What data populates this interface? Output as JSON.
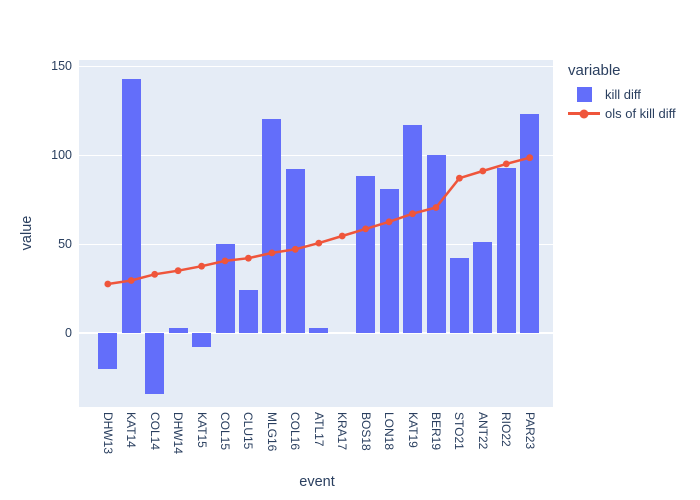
{
  "chart_data": {
    "type": "bar",
    "title": "",
    "categories": [
      "DHW13",
      "KAT14",
      "COL14",
      "DHW14",
      "KAT15",
      "COL15",
      "CLU15",
      "MLG16",
      "COL16",
      "ATL17",
      "KRA17",
      "BOS18",
      "LON18",
      "KAT19",
      "BER19",
      "STO21",
      "ANT22",
      "RIO22",
      "PAR23"
    ],
    "series": [
      {
        "name": "kill diff",
        "type": "bar",
        "color": "#636efa",
        "values": [
          -20,
          143,
          -34,
          3,
          -8,
          50,
          24,
          120,
          92,
          3,
          0,
          88,
          81,
          117,
          100,
          42,
          51,
          93,
          123
        ]
      },
      {
        "name": "ols of kill diff",
        "type": "line",
        "color": "#ef553b",
        "marker": "circle",
        "values": [
          27.5,
          29.5,
          33,
          35,
          37.5,
          40.5,
          42,
          45,
          47,
          50.5,
          54.5,
          58.5,
          62.5,
          67,
          70.5,
          87,
          91,
          95,
          98.5
        ]
      }
    ],
    "xlabel": "event",
    "ylabel": "value",
    "legend_title": "variable",
    "legend_position": "right",
    "ylim": [
      -41.6,
      153.4
    ],
    "yticks": [
      0,
      50,
      100,
      150
    ],
    "grid": true,
    "colors": {
      "plot_background": "#e5ecf6",
      "paper_background": "#ffffff",
      "grid": "#ffffff",
      "text": "#2a3f5f"
    }
  }
}
